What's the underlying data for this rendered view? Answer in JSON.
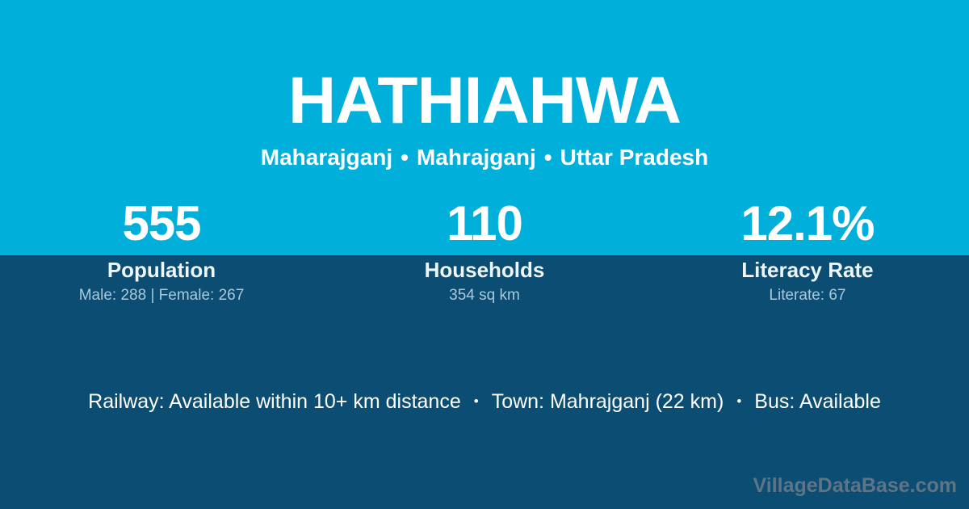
{
  "header": {
    "title": "HATHIAHWA",
    "district": "Maharajganj",
    "tehsil": "Mahrajganj",
    "state": "Uttar Pradesh",
    "separator": "•"
  },
  "stats": [
    {
      "value": "555",
      "label": "Population",
      "detail": "Male: 288 | Female: 267"
    },
    {
      "value": "110",
      "label": "Households",
      "detail": "354 sq km"
    },
    {
      "value": "12.1%",
      "label": "Literacy Rate",
      "detail": "Literate: 67"
    }
  ],
  "footer": {
    "items": [
      "Railway: Available within 10+ km distance",
      "Town: Mahrajganj (22 km)",
      "Bus: Available"
    ],
    "separator": "•"
  },
  "watermark": "VillageDataBase.com",
  "colors": {
    "top_background": "#00AFDA",
    "bottom_background": "#0C4D73",
    "primary_text": "#FFFFFF",
    "muted_text": "#A9C9DA",
    "watermark_text": "#5E7587"
  }
}
